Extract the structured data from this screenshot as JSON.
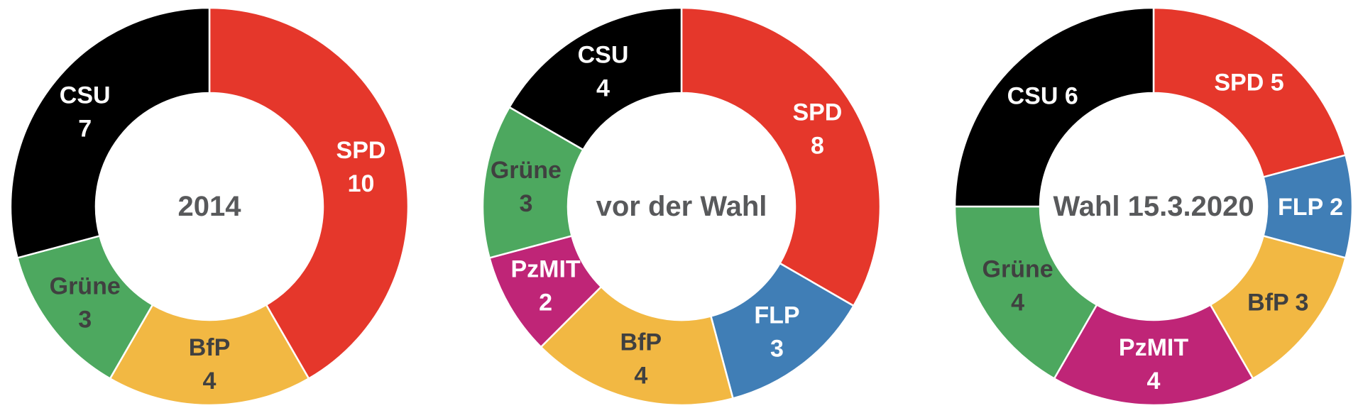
{
  "page": {
    "background": "#FFFFFF",
    "center_text_color": "#58595B",
    "dark_label_color": "#404040",
    "light_label_color": "#FFFFFF",
    "slice_separator_color": "#FFFFFF"
  },
  "chart_data": [
    {
      "type": "pie",
      "variant": "donut",
      "center_label": "2014",
      "center_label_color": "#58595B",
      "total_seats": 24,
      "start_angle_deg": 0,
      "direction": "clockwise",
      "inner_radius_ratio": 0.57,
      "segments": [
        {
          "party": "SPD",
          "seats": 10,
          "color": "#E5372B",
          "label_color": "#FFFFFF",
          "label_layout": "stacked"
        },
        {
          "party": "BfP",
          "seats": 4,
          "color": "#F2B843",
          "label_color": "#404040",
          "label_layout": "stacked"
        },
        {
          "party": "Grüne",
          "seats": 3,
          "color": "#4DA85F",
          "label_color": "#404040",
          "label_layout": "stacked"
        },
        {
          "party": "CSU",
          "seats": 7,
          "color": "#000000",
          "label_color": "#FFFFFF",
          "label_layout": "stacked"
        }
      ]
    },
    {
      "type": "pie",
      "variant": "donut",
      "center_label": "vor der Wahl",
      "center_label_color": "#58595B",
      "total_seats": 24,
      "start_angle_deg": 0,
      "direction": "clockwise",
      "inner_radius_ratio": 0.57,
      "segments": [
        {
          "party": "SPD",
          "seats": 8,
          "color": "#E5372B",
          "label_color": "#FFFFFF",
          "label_layout": "stacked"
        },
        {
          "party": "FLP",
          "seats": 3,
          "color": "#407EB6",
          "label_color": "#FFFFFF",
          "label_layout": "stacked"
        },
        {
          "party": "BfP",
          "seats": 4,
          "color": "#F2B843",
          "label_color": "#404040",
          "label_layout": "stacked"
        },
        {
          "party": "PzMIT",
          "seats": 2,
          "color": "#BF2577",
          "label_color": "#FFFFFF",
          "label_layout": "stacked"
        },
        {
          "party": "Grüne",
          "seats": 3,
          "color": "#4DA85F",
          "label_color": "#404040",
          "label_layout": "stacked"
        },
        {
          "party": "CSU",
          "seats": 4,
          "color": "#000000",
          "label_color": "#FFFFFF",
          "label_layout": "stacked"
        }
      ]
    },
    {
      "type": "pie",
      "variant": "donut",
      "center_label": "Wahl 15.3.2020",
      "center_label_color": "#58595B",
      "total_seats": 24,
      "start_angle_deg": 0,
      "direction": "clockwise",
      "inner_radius_ratio": 0.57,
      "segments": [
        {
          "party": "SPD",
          "seats": 5,
          "color": "#E5372B",
          "label_color": "#FFFFFF",
          "label_layout": "inline"
        },
        {
          "party": "FLP",
          "seats": 2,
          "color": "#407EB6",
          "label_color": "#FFFFFF",
          "label_layout": "inline"
        },
        {
          "party": "BfP",
          "seats": 3,
          "color": "#F2B843",
          "label_color": "#404040",
          "label_layout": "inline"
        },
        {
          "party": "PzMIT",
          "seats": 4,
          "color": "#BF2577",
          "label_color": "#FFFFFF",
          "label_layout": "stacked"
        },
        {
          "party": "Grüne",
          "seats": 4,
          "color": "#4DA85F",
          "label_color": "#404040",
          "label_layout": "stacked"
        },
        {
          "party": "CSU",
          "seats": 6,
          "color": "#000000",
          "label_color": "#FFFFFF",
          "label_layout": "inline"
        }
      ]
    }
  ]
}
